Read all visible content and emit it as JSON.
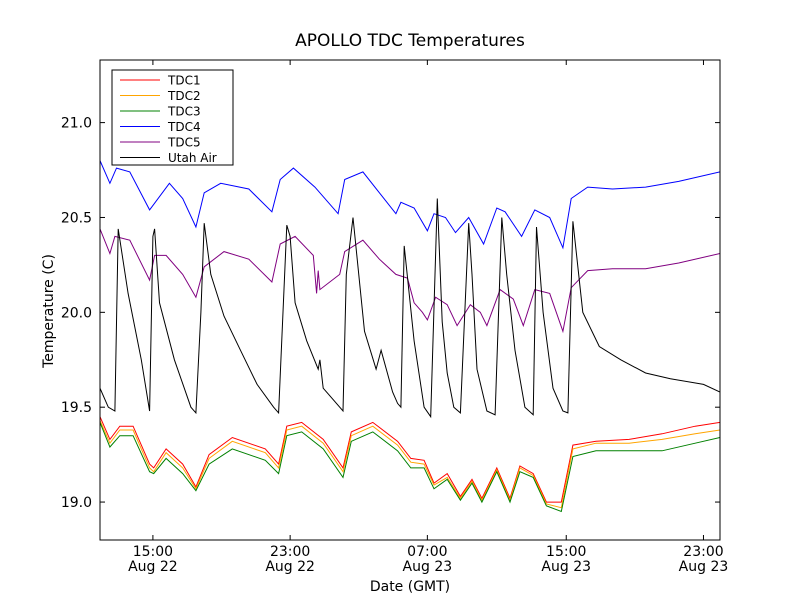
{
  "chart_data": {
    "type": "line",
    "title": "APOLLO TDC Temperatures",
    "xlabel": "Date (GMT)",
    "ylabel": "Temperature (C)",
    "x_unit": "hours since Aug 22 10:00 GMT",
    "xlim": [
      0,
      37.5
    ],
    "ylim": [
      18.8,
      21.33
    ],
    "yticks": [
      19.0,
      19.5,
      20.0,
      20.5,
      21.0
    ],
    "ytick_labels": [
      "19.0",
      "19.5",
      "20.0",
      "20.5",
      "21.0"
    ],
    "xticks": [
      {
        "x": 3.2,
        "time": "15:00",
        "date": "Aug 22"
      },
      {
        "x": 11.5,
        "time": "23:00",
        "date": "Aug 22"
      },
      {
        "x": 19.8,
        "time": "07:00",
        "date": "Aug 23"
      },
      {
        "x": 28.2,
        "time": "15:00",
        "date": "Aug 23"
      },
      {
        "x": 36.5,
        "time": "23:00",
        "date": "Aug 23"
      }
    ],
    "legend_location": "top-left",
    "series": [
      {
        "name": "TDC1",
        "color": "#ff0000",
        "x": [
          0,
          0.6,
          1.2,
          2.0,
          3.0,
          3.25,
          4.0,
          5.0,
          5.8,
          6.6,
          8.0,
          10.0,
          10.8,
          11.3,
          12.2,
          13.5,
          14.7,
          15.2,
          16.5,
          18.0,
          18.8,
          19.6,
          20.2,
          21.0,
          21.8,
          22.5,
          23.1,
          24.0,
          24.8,
          25.4,
          26.2,
          27.0,
          27.9,
          28.6,
          30.0,
          32.0,
          34.0,
          36.0,
          37.5
        ],
        "y": [
          19.45,
          19.33,
          19.4,
          19.4,
          19.2,
          19.18,
          19.28,
          19.2,
          19.08,
          19.25,
          19.34,
          19.28,
          19.2,
          19.4,
          19.42,
          19.33,
          19.18,
          19.37,
          19.42,
          19.32,
          19.23,
          19.22,
          19.1,
          19.15,
          19.03,
          19.12,
          19.02,
          19.18,
          19.02,
          19.19,
          19.15,
          19.0,
          19.0,
          19.3,
          19.32,
          19.33,
          19.36,
          19.4,
          19.42
        ]
      },
      {
        "name": "TDC2",
        "color": "#ffa500",
        "x": [
          0,
          0.6,
          1.2,
          2.0,
          3.0,
          3.25,
          4.0,
          5.0,
          5.8,
          6.6,
          8.0,
          10.0,
          10.8,
          11.3,
          12.2,
          13.5,
          14.7,
          15.2,
          16.5,
          18.0,
          18.8,
          19.6,
          20.2,
          21.0,
          21.8,
          22.5,
          23.1,
          24.0,
          24.8,
          25.4,
          26.2,
          27.0,
          27.9,
          28.6,
          30.0,
          32.0,
          34.0,
          36.0,
          37.5
        ],
        "y": [
          19.43,
          19.31,
          19.38,
          19.38,
          19.18,
          19.16,
          19.26,
          19.18,
          19.07,
          19.23,
          19.32,
          19.26,
          19.18,
          19.38,
          19.4,
          19.31,
          19.16,
          19.35,
          19.4,
          19.3,
          19.21,
          19.2,
          19.09,
          19.13,
          19.02,
          19.11,
          19.01,
          19.17,
          19.01,
          19.18,
          19.14,
          18.99,
          18.97,
          19.28,
          19.31,
          19.31,
          19.33,
          19.36,
          19.38
        ]
      },
      {
        "name": "TDC3",
        "color": "#008000",
        "x": [
          0,
          0.6,
          1.2,
          2.0,
          3.0,
          3.25,
          4.0,
          5.0,
          5.8,
          6.6,
          8.0,
          10.0,
          10.8,
          11.3,
          12.2,
          13.5,
          14.7,
          15.2,
          16.5,
          18.0,
          18.8,
          19.6,
          20.2,
          21.0,
          21.8,
          22.5,
          23.1,
          24.0,
          24.8,
          25.4,
          26.2,
          27.0,
          27.9,
          28.6,
          30.0,
          32.0,
          34.0,
          36.0,
          37.5
        ],
        "y": [
          19.42,
          19.29,
          19.35,
          19.35,
          19.16,
          19.15,
          19.23,
          19.15,
          19.06,
          19.2,
          19.28,
          19.22,
          19.15,
          19.35,
          19.37,
          19.28,
          19.13,
          19.32,
          19.37,
          19.27,
          19.18,
          19.18,
          19.07,
          19.12,
          19.01,
          19.1,
          19.0,
          19.16,
          19.0,
          19.16,
          19.13,
          18.98,
          18.95,
          19.24,
          19.27,
          19.27,
          19.27,
          19.31,
          19.34
        ]
      },
      {
        "name": "TDC4",
        "color": "#0000ff",
        "x": [
          0,
          0.6,
          1.0,
          1.8,
          3.0,
          4.2,
          5.0,
          5.8,
          6.3,
          7.3,
          9.0,
          10.4,
          10.9,
          11.7,
          13.0,
          14.4,
          14.8,
          15.9,
          16.9,
          17.9,
          18.2,
          19.0,
          19.8,
          20.2,
          20.9,
          21.5,
          22.3,
          23.2,
          24.0,
          24.5,
          25.5,
          26.3,
          27.2,
          28.0,
          28.5,
          29.5,
          31.0,
          33.0,
          35.0,
          37.5
        ],
        "y": [
          20.8,
          20.68,
          20.76,
          20.74,
          20.54,
          20.68,
          20.6,
          20.45,
          20.63,
          20.68,
          20.65,
          20.53,
          20.7,
          20.76,
          20.66,
          20.52,
          20.7,
          20.74,
          20.63,
          20.52,
          20.58,
          20.55,
          20.43,
          20.52,
          20.5,
          20.42,
          20.5,
          20.36,
          20.55,
          20.53,
          20.4,
          20.54,
          20.5,
          20.34,
          20.6,
          20.66,
          20.65,
          20.66,
          20.69,
          20.74
        ]
      },
      {
        "name": "TDC5",
        "color": "#800080",
        "x": [
          0,
          0.6,
          0.9,
          1.8,
          3.0,
          3.3,
          4.0,
          5.0,
          5.8,
          6.3,
          7.5,
          9.0,
          10.4,
          10.9,
          11.8,
          12.9,
          13.1,
          13.2,
          13.3,
          14.5,
          14.8,
          15.9,
          16.9,
          17.9,
          18.6,
          19.0,
          19.5,
          19.8,
          20.3,
          21.0,
          21.6,
          22.4,
          23.0,
          23.4,
          24.2,
          25.0,
          25.6,
          26.3,
          27.2,
          28.0,
          28.5,
          29.5,
          31.0,
          33.0,
          35.0,
          37.5
        ],
        "y": [
          20.44,
          20.31,
          20.4,
          20.38,
          20.17,
          20.3,
          20.3,
          20.2,
          20.08,
          20.24,
          20.32,
          20.28,
          20.16,
          20.36,
          20.4,
          20.3,
          20.1,
          20.22,
          20.12,
          20.2,
          20.32,
          20.38,
          20.28,
          20.2,
          20.18,
          20.05,
          20.0,
          19.96,
          20.08,
          20.04,
          19.93,
          20.04,
          20.0,
          19.93,
          20.12,
          20.07,
          19.93,
          20.12,
          20.1,
          19.9,
          20.13,
          20.22,
          20.23,
          20.23,
          20.26,
          20.31
        ]
      },
      {
        "name": "Utah Air",
        "color": "#000000",
        "x": [
          0,
          0.5,
          0.9,
          1.1,
          1.7,
          2.5,
          3.0,
          3.2,
          3.3,
          3.6,
          4.5,
          5.5,
          5.8,
          6.1,
          6.3,
          6.7,
          7.5,
          8.5,
          9.5,
          10.5,
          10.8,
          11.3,
          11.5,
          11.8,
          12.5,
          13.2,
          13.3,
          13.5,
          14.0,
          14.7,
          14.9,
          15.3,
          16.0,
          16.7,
          17.0,
          17.7,
          18.0,
          18.2,
          18.4,
          19.0,
          19.6,
          20.0,
          20.4,
          20.7,
          21.0,
          21.4,
          21.8,
          22.3,
          22.5,
          22.8,
          23.4,
          23.9,
          24.3,
          24.6,
          25.1,
          25.7,
          26.2,
          26.4,
          26.8,
          27.4,
          28.0,
          28.3,
          28.6,
          29.2,
          30.2,
          31.5,
          33.0,
          34.5,
          36.5,
          37.5
        ],
        "y": [
          19.6,
          19.5,
          19.48,
          20.44,
          20.1,
          19.75,
          19.48,
          20.4,
          20.44,
          20.05,
          19.75,
          19.5,
          19.47,
          20.0,
          20.47,
          20.2,
          19.98,
          19.8,
          19.62,
          19.5,
          19.47,
          20.46,
          20.4,
          20.05,
          19.85,
          19.7,
          19.75,
          19.6,
          19.55,
          19.48,
          20.2,
          20.5,
          19.9,
          19.7,
          19.8,
          19.58,
          19.52,
          19.5,
          20.35,
          19.85,
          19.5,
          19.45,
          20.6,
          19.95,
          19.68,
          19.5,
          19.47,
          20.47,
          20.2,
          19.7,
          19.48,
          19.46,
          20.5,
          20.2,
          19.8,
          19.5,
          19.46,
          20.45,
          20.0,
          19.6,
          19.48,
          19.47,
          20.48,
          20.0,
          19.82,
          19.75,
          19.68,
          19.65,
          19.62,
          19.58
        ]
      }
    ]
  }
}
